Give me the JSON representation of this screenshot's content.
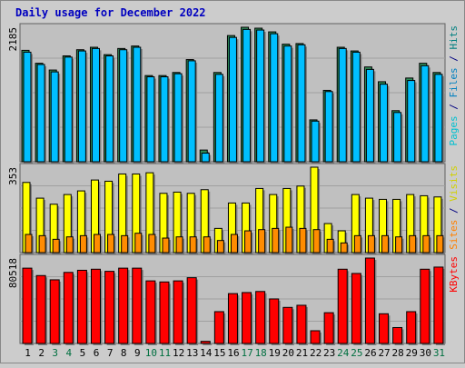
{
  "chart_data": {
    "type": "bar",
    "title": "Daily usage for December 2022",
    "categories": [
      "1",
      "2",
      "3",
      "4",
      "5",
      "6",
      "7",
      "8",
      "9",
      "10",
      "11",
      "12",
      "13",
      "14",
      "15",
      "16",
      "17",
      "18",
      "19",
      "20",
      "21",
      "22",
      "23",
      "24",
      "25",
      "26",
      "27",
      "28",
      "29",
      "30",
      "31"
    ],
    "weekend_days": [
      "3",
      "4",
      "10",
      "11",
      "17",
      "18",
      "24",
      "25",
      "31"
    ],
    "panels": [
      {
        "name": "hits-files-pages",
        "axis_max_label": "2185",
        "ylim": [
          0,
          2185
        ],
        "right_labels": [
          {
            "text": "Pages",
            "color": "#00c0d0"
          },
          {
            "text": " / ",
            "color": "#000080"
          },
          {
            "text": "Files",
            "color": "#0080c0"
          },
          {
            "text": " / ",
            "color": "#000080"
          },
          {
            "text": "Hits",
            "color": "#008080"
          }
        ],
        "series": [
          {
            "name": "Hits",
            "color": "#2e8b57",
            "values": [
              1810,
              1600,
              1490,
              1720,
              1820,
              1860,
              1740,
              1840,
              1880,
              1400,
              1400,
              1450,
              1660,
              190,
              1450,
              2050,
              2185,
              2170,
              2110,
              1910,
              1920,
              680,
              1160,
              1860,
              1800,
              1540,
              1300,
              830,
              1360,
              1600,
              1450
            ]
          },
          {
            "name": "Files",
            "color": "#00bfff",
            "values": [
              1780,
              1580,
              1460,
              1700,
              1800,
              1840,
              1720,
              1820,
              1860,
              1380,
              1380,
              1430,
              1640,
              140,
              1420,
              2020,
              2150,
              2140,
              2080,
              1880,
              1900,
              660,
              1140,
              1840,
              1780,
              1500,
              1260,
              800,
              1320,
              1560,
              1420
            ]
          },
          {
            "name": "Pages",
            "color": "#00e5ff",
            "values": [
              0,
              0,
              0,
              0,
              0,
              0,
              0,
              0,
              0,
              0,
              0,
              0,
              0,
              0,
              0,
              0,
              0,
              0,
              0,
              0,
              0,
              0,
              0,
              0,
              0,
              0,
              0,
              0,
              0,
              0,
              0
            ]
          }
        ]
      },
      {
        "name": "visits-sites",
        "axis_max_label": "353",
        "ylim": [
          0,
          353
        ],
        "right_labels": [
          {
            "text": "Sites",
            "color": "#ff8000"
          },
          {
            "text": " / ",
            "color": "#000080"
          },
          {
            "text": "Visits",
            "color": "#d0d000"
          }
        ],
        "series": [
          {
            "name": "Visits",
            "color": "#ffff00",
            "values": [
              290,
              225,
              200,
              240,
              255,
              300,
              295,
              325,
              325,
              330,
              245,
              250,
              245,
              260,
              100,
              205,
              205,
              265,
              240,
              265,
              275,
              353,
              120,
              90,
              240,
              225,
              220,
              220,
              240,
              235,
              230
            ]
          },
          {
            "name": "Sites",
            "color": "#ff8c00",
            "values": [
              75,
              70,
              55,
              65,
              70,
              75,
              75,
              70,
              80,
              75,
              60,
              65,
              65,
              65,
              50,
              75,
              90,
              95,
              100,
              105,
              100,
              95,
              55,
              40,
              70,
              70,
              70,
              65,
              70,
              70,
              70
            ]
          }
        ]
      },
      {
        "name": "kbytes",
        "axis_max_label": "80518",
        "ylim": [
          0,
          80518
        ],
        "right_labels": [
          {
            "text": "KBytes",
            "color": "#ff0000"
          }
        ],
        "series": [
          {
            "name": "KBytes",
            "color": "#ff0000",
            "values": [
              71000,
              64000,
              60000,
              67000,
              69000,
              70000,
              68000,
              71000,
              71000,
              59000,
              58000,
              59000,
              62000,
              2000,
              30000,
              47000,
              48000,
              49000,
              42000,
              34000,
              36000,
              12000,
              29000,
              70000,
              66000,
              80518,
              28000,
              15000,
              30000,
              70000,
              72000
            ]
          }
        ]
      }
    ]
  }
}
